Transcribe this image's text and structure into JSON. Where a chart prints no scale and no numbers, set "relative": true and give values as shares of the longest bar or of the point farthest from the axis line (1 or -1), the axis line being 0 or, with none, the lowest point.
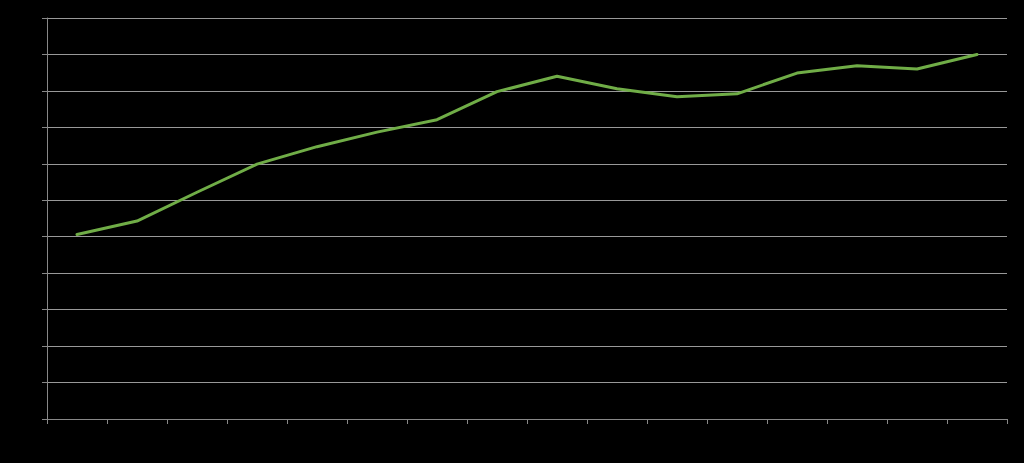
{
  "chart_data": {
    "type": "line",
    "relative": true,
    "grid": "y",
    "marker": "none",
    "line_style": "solid",
    "categories": [
      null,
      null,
      null,
      null,
      null,
      null,
      null,
      null,
      null,
      null,
      null,
      null,
      null,
      null,
      null,
      null
    ],
    "series": [
      {
        "color": "#70ad47",
        "values": [
          0.506,
          0.543,
          0.622,
          0.699,
          0.747,
          0.787,
          0.821,
          0.898,
          0.94,
          0.906,
          0.884,
          0.892,
          0.949,
          0.969,
          0.96,
          1
        ]
      }
    ]
  }
}
